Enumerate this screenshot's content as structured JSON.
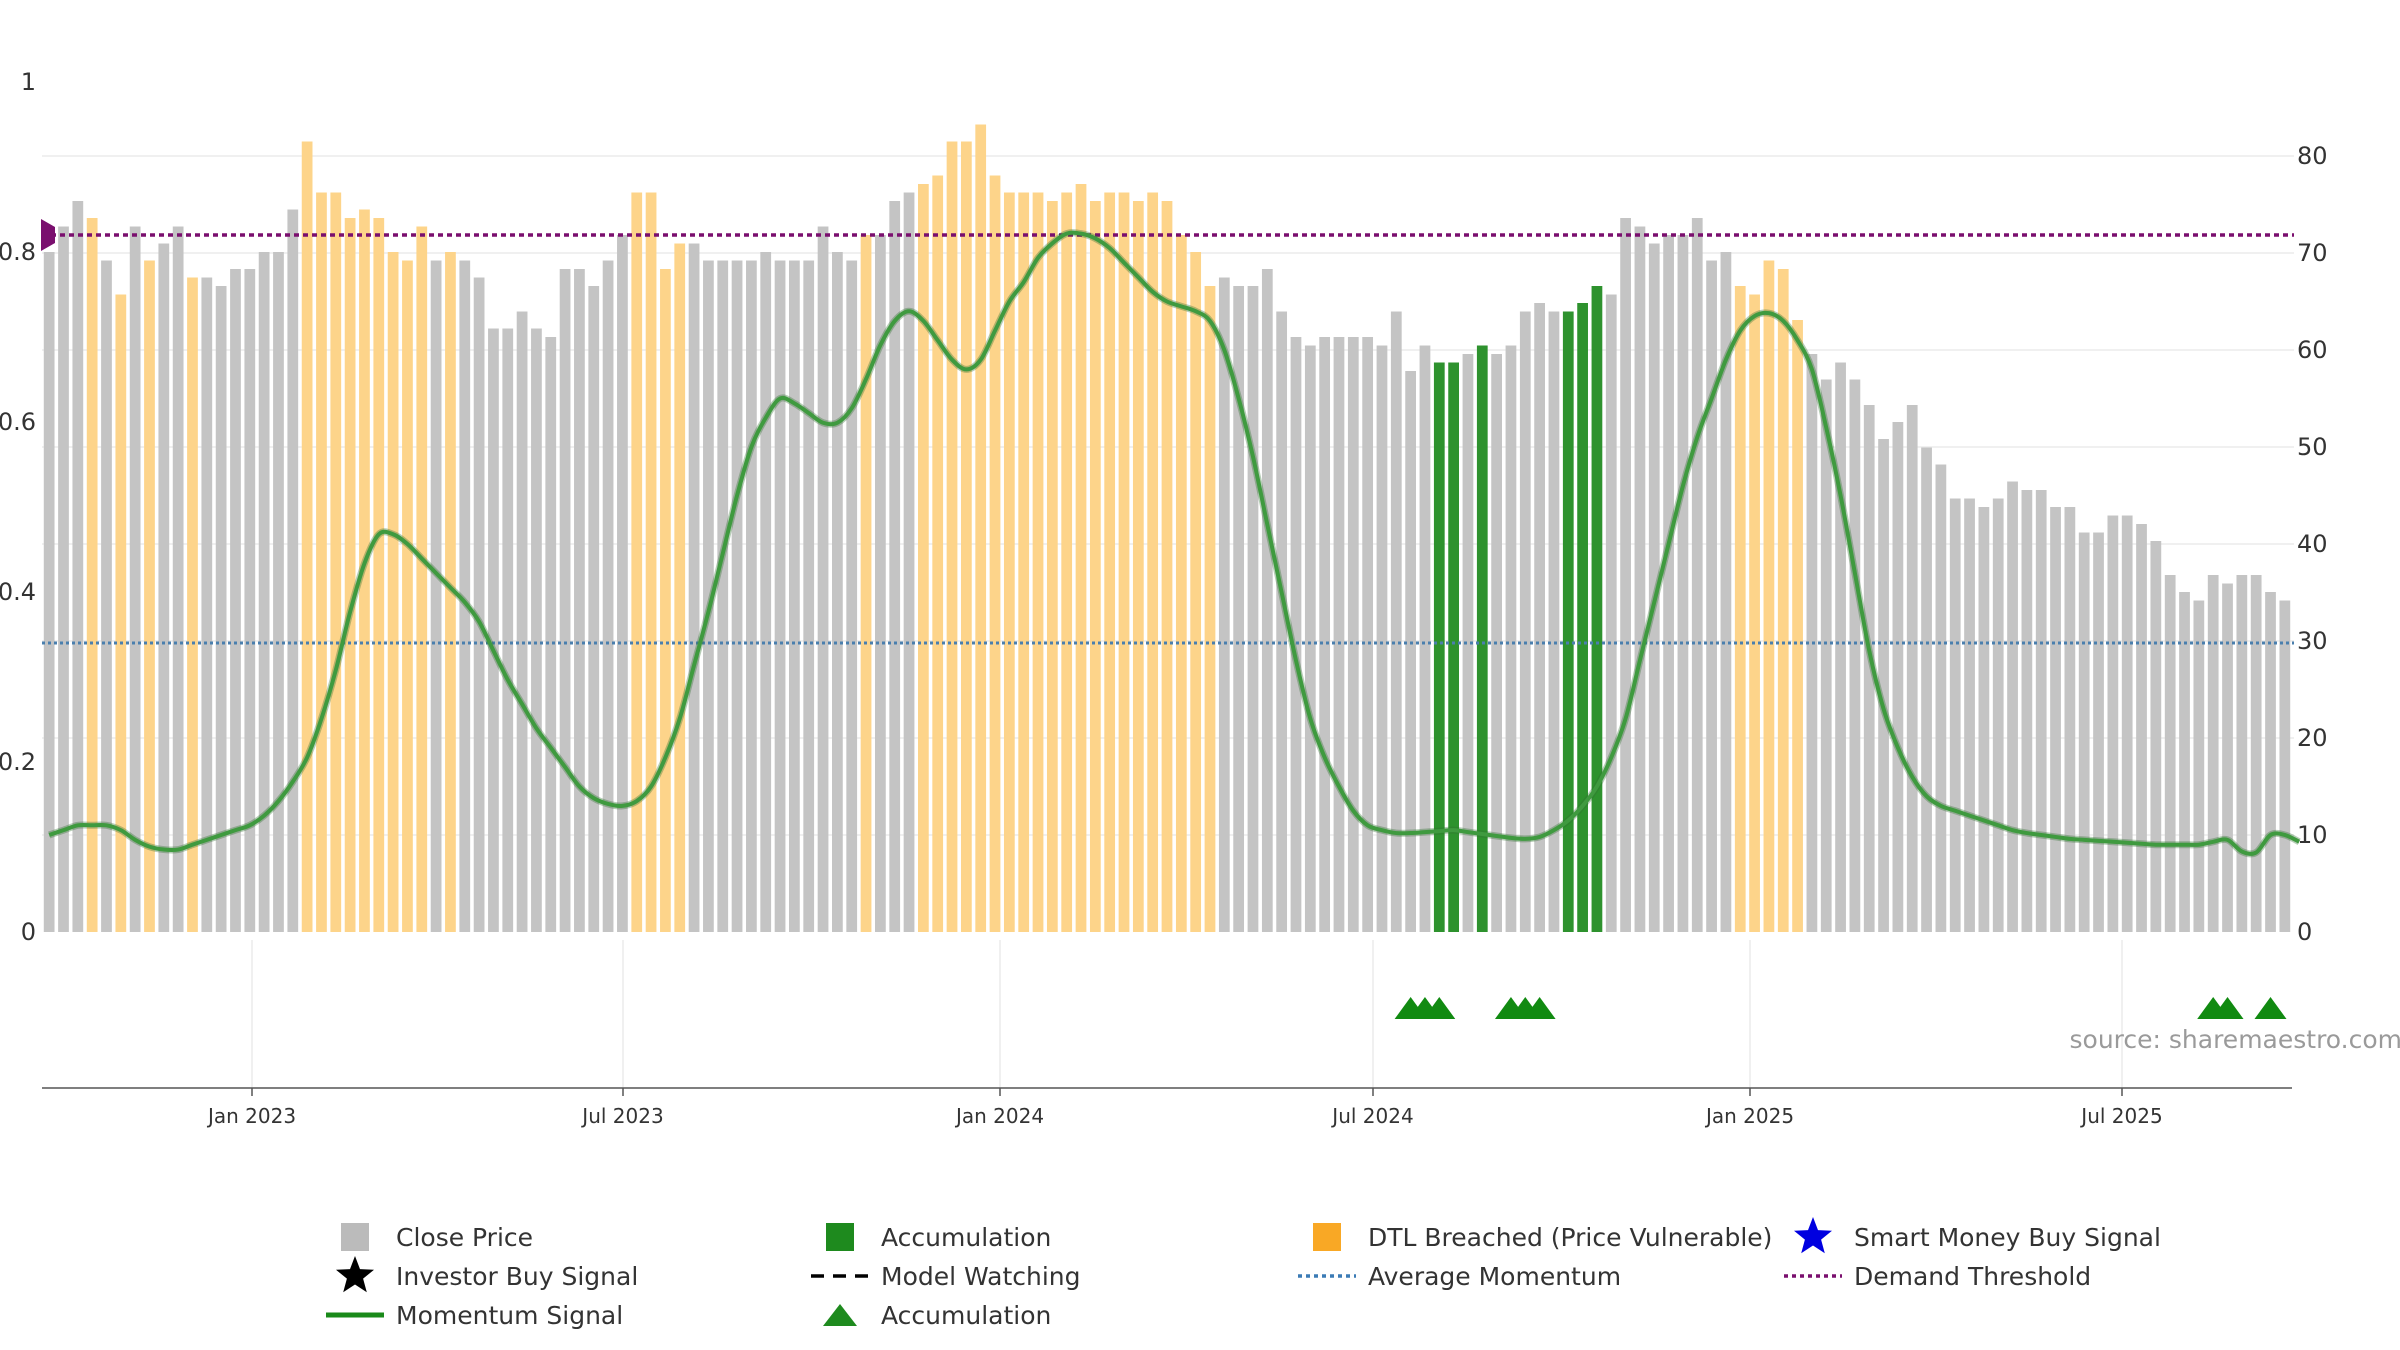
{
  "chart_data": {
    "type": "bar",
    "title": "",
    "source": "source: sharemaestro.com",
    "left_axis": {
      "ticks": [
        "0",
        "0.2",
        "0.4",
        "0.6",
        "0.8",
        "1"
      ],
      "range": [
        0,
        1
      ]
    },
    "right_axis": {
      "ticks": [
        "0",
        "10",
        "20",
        "30",
        "40",
        "50",
        "60",
        "70",
        "80"
      ],
      "range": [
        0,
        88
      ]
    },
    "x_axis": {
      "ticks": [
        "Jan 2023",
        "Jul 2023",
        "Jan 2024",
        "Jul 2024",
        "Jan 2025",
        "Jul 2025"
      ],
      "start": "Oct 2022",
      "end": "Oct 2025"
    },
    "demand_threshold": 0.82,
    "average_momentum": 0.34,
    "bar_heights": [
      0.8,
      0.83,
      0.86,
      0.84,
      0.79,
      0.75,
      0.83,
      0.79,
      0.81,
      0.83,
      0.77,
      0.77,
      0.76,
      0.78,
      0.78,
      0.8,
      0.8,
      0.85,
      0.93,
      0.87,
      0.87,
      0.84,
      0.85,
      0.84,
      0.8,
      0.79,
      0.83,
      0.79,
      0.8,
      0.79,
      0.77,
      0.71,
      0.71,
      0.73,
      0.71,
      0.7,
      0.78,
      0.78,
      0.76,
      0.79,
      0.82,
      0.87,
      0.87,
      0.78,
      0.81,
      0.81,
      0.79,
      0.79,
      0.79,
      0.79,
      0.8,
      0.79,
      0.79,
      0.79,
      0.83,
      0.8,
      0.79,
      0.82,
      0.82,
      0.86,
      0.87,
      0.88,
      0.89,
      0.93,
      0.93,
      0.95,
      0.89,
      0.87,
      0.87,
      0.87,
      0.86,
      0.87,
      0.88,
      0.86,
      0.87,
      0.87,
      0.86,
      0.87,
      0.86,
      0.82,
      0.8,
      0.76,
      0.77,
      0.76,
      0.76,
      0.78,
      0.73,
      0.7,
      0.69,
      0.7,
      0.7,
      0.7,
      0.7,
      0.69,
      0.73,
      0.66,
      0.69,
      0.67,
      0.67,
      0.68,
      0.69,
      0.68,
      0.69,
      0.73,
      0.74,
      0.73,
      0.73,
      0.74,
      0.76,
      0.75,
      0.84,
      0.83,
      0.81,
      0.82,
      0.82,
      0.84,
      0.79,
      0.8,
      0.76,
      0.75,
      0.79,
      0.78,
      0.72,
      0.68,
      0.65,
      0.67,
      0.65,
      0.62,
      0.58,
      0.6,
      0.62,
      0.57,
      0.55,
      0.51,
      0.51,
      0.5,
      0.51,
      0.53,
      0.52,
      0.52,
      0.5,
      0.5,
      0.47,
      0.47,
      0.49,
      0.49,
      0.48,
      0.46,
      0.42,
      0.4,
      0.39,
      0.42,
      0.41,
      0.42,
      0.42,
      0.4,
      0.39
    ],
    "bar_categories": "gggdgdgdggdgggggggdddddddddgdggggggggggggddddggggggggggggdgggdddddddddddddddddddddgggggggggggggggaagagggggaaagggggggggdddddggggggggggggggggggggggggggggggggggggaaggagg",
    "momentum_signal": [
      10,
      10.5,
      11,
      11,
      11,
      10.5,
      9.5,
      8.8,
      8.5,
      8.5,
      9,
      9.5,
      10,
      10.5,
      11,
      12,
      13.5,
      15.5,
      18,
      22,
      27,
      33,
      38,
      41,
      41,
      40,
      38.5,
      37,
      35.5,
      34,
      32,
      29,
      26,
      23.5,
      21,
      19,
      17,
      15,
      13.8,
      13.2,
      13,
      13.5,
      15,
      18,
      22,
      27.5,
      33,
      39,
      45,
      50,
      53,
      55,
      54.5,
      53.5,
      52.5,
      52.5,
      54,
      57,
      60.5,
      63,
      64,
      63,
      61,
      59,
      58,
      59,
      62,
      65,
      67,
      69.5,
      71,
      72,
      72,
      71.5,
      70.5,
      69,
      67.5,
      66,
      65,
      64.5,
      64,
      63,
      60,
      55,
      49,
      42,
      35,
      28,
      22,
      18,
      15,
      12.5,
      11,
      10.5,
      10.2,
      10.2,
      10.3,
      10.4,
      10.5,
      10.3,
      10.1,
      9.9,
      9.7,
      9.6,
      9.8,
      10.5,
      11.5,
      13,
      15,
      18,
      22,
      28,
      34,
      40,
      46,
      51,
      55,
      59,
      62,
      63.5,
      63.8,
      63,
      61,
      58,
      52,
      45,
      37,
      29,
      23,
      19,
      16,
      14,
      13,
      12.5,
      12,
      11.5,
      11,
      10.5,
      10.2,
      10,
      9.8,
      9.6,
      9.5,
      9.4,
      9.3,
      9.2,
      9.1,
      9,
      9,
      9,
      9,
      9.3,
      9.5,
      8.3,
      8.2,
      10,
      10,
      9.3
    ],
    "accumulation_markers": [
      95,
      96,
      97,
      102,
      103,
      104,
      151,
      152,
      155
    ],
    "legend": [
      {
        "label": "Close Price",
        "color": "#bbbbbb",
        "symbol": "square"
      },
      {
        "label": "Accumulation",
        "color": "#1e8a1e",
        "symbol": "square"
      },
      {
        "label": "DTL Breached (Price Vulnerable)",
        "color": "#f9a825",
        "symbol": "square"
      },
      {
        "label": "Smart Money Buy Signal",
        "color": "#0000e0",
        "symbol": "star"
      },
      {
        "label": "Investor Buy Signal",
        "color": "#000000",
        "symbol": "star"
      },
      {
        "label": "Model Watching",
        "color": "#000000",
        "symbol": "dash"
      },
      {
        "label": "Average Momentum",
        "color": "#3b7bb5",
        "symbol": "dotted"
      },
      {
        "label": "Demand Threshold",
        "color": "#7a0f6e",
        "symbol": "dotted"
      },
      {
        "label": "Momentum Signal",
        "color": "#1a8a1a",
        "symbol": "line"
      },
      {
        "label": "Accumulation",
        "color": "#1e8a1e",
        "symbol": "triangle"
      }
    ],
    "colors": {
      "gray": "#c4c4c4",
      "orange": "#fdd48a",
      "green": "#2e922e",
      "momentum": "#3f9a3f",
      "average": "#4a7fae",
      "threshold": "#7a0f6e",
      "source": "#9a9a9a"
    }
  }
}
